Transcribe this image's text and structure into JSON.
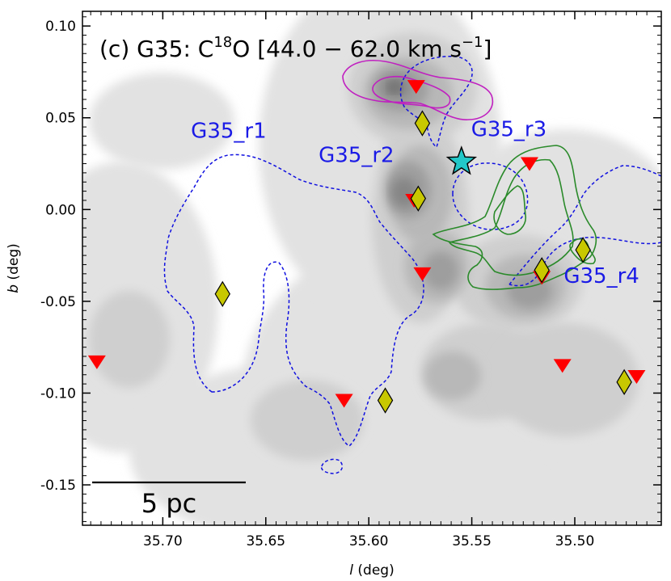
{
  "chart_data": {
    "type": "scatter",
    "title": "(c) G35: C",
    "title_sup": "18",
    "title_rest": "O [44.0 − 62.0 km s",
    "title_sup2": "−1",
    "title_end": "]",
    "xlabel_italic": "l",
    "xlabel_rest": " (deg)",
    "ylabel_italic": "b",
    "ylabel_rest": " (deg)",
    "xlim": [
      35.739,
      35.458
    ],
    "ylim": [
      -0.172,
      0.108
    ],
    "x_ticks": [
      35.7,
      35.65,
      35.6,
      35.55,
      35.5
    ],
    "x_tick_labels": [
      "35.70",
      "35.65",
      "35.60",
      "35.55",
      "35.50"
    ],
    "y_ticks": [
      0.1,
      0.05,
      0.0,
      -0.05,
      -0.1,
      -0.15
    ],
    "y_tick_labels": [
      "0.10",
      "0.05",
      "0.00",
      "-0.05",
      "-0.10",
      "-0.15"
    ],
    "scale_bar_label": "5 pc",
    "region_labels": [
      {
        "text": "G35_r1",
        "x": 35.668,
        "y": 0.039
      },
      {
        "text": "G35_r2",
        "x": 35.606,
        "y": 0.026
      },
      {
        "text": "G35_r3",
        "x": 35.532,
        "y": 0.04
      },
      {
        "text": "G35_r4",
        "x": 35.487,
        "y": -0.04
      }
    ],
    "triangles": [
      {
        "x": 35.577,
        "y": 0.067
      },
      {
        "x": 35.522,
        "y": 0.025
      },
      {
        "x": 35.578,
        "y": 0.005
      },
      {
        "x": 35.574,
        "y": -0.035
      },
      {
        "x": 35.516,
        "y": -0.037
      },
      {
        "x": 35.506,
        "y": -0.085
      },
      {
        "x": 35.47,
        "y": -0.091
      },
      {
        "x": 35.612,
        "y": -0.104
      },
      {
        "x": 35.732,
        "y": -0.083
      }
    ],
    "diamonds": [
      {
        "x": 35.574,
        "y": 0.047
      },
      {
        "x": 35.576,
        "y": 0.006
      },
      {
        "x": 35.671,
        "y": -0.046
      },
      {
        "x": 35.516,
        "y": -0.033
      },
      {
        "x": 35.496,
        "y": -0.022
      },
      {
        "x": 35.476,
        "y": -0.094
      },
      {
        "x": 35.592,
        "y": -0.104
      }
    ],
    "star": {
      "x": 35.555,
      "y": 0.026
    },
    "colors": {
      "region_outline": "#1010e0",
      "region_label": "#1a1ae6",
      "magenta_contour": "#c020c0",
      "green_contour": "#2a8a2a",
      "triangle": "#ff0000",
      "diamond": "#c8c800",
      "star": "#22c8c8",
      "gray_levels": [
        "#e2e2e2",
        "#cfcfcf",
        "#b8b8b8",
        "#9e9e9e",
        "#858585",
        "#6e6e6e"
      ]
    }
  }
}
